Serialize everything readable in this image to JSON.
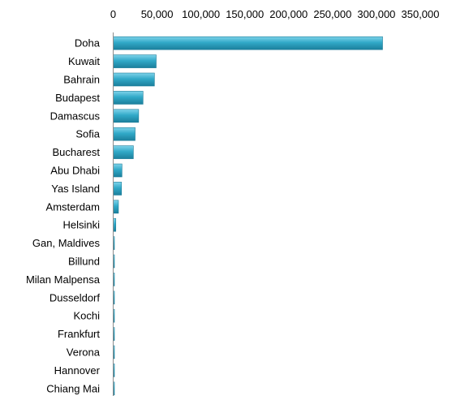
{
  "chart_data": {
    "type": "bar",
    "orientation": "horizontal",
    "categories": [
      "Doha",
      "Kuwait",
      "Bahrain",
      "Budapest",
      "Damascus",
      "Sofia",
      "Bucharest",
      "Abu Dhabi",
      "Yas Island",
      "Amsterdam",
      "Helsinki",
      "Gan, Maldives",
      "Billund",
      "Milan Malpensa",
      "Dusseldorf",
      "Kochi",
      "Frankfurt",
      "Verona",
      "Hannover",
      "Chiang Mai"
    ],
    "values": [
      307000,
      49000,
      47000,
      34000,
      29000,
      25000,
      23000,
      10000,
      9500,
      6000,
      3000,
      1000,
      800,
      700,
      700,
      600,
      600,
      600,
      500,
      500
    ],
    "x_ticks": [
      "0",
      "50,000",
      "100,000",
      "150,000",
      "200,000",
      "250,000",
      "300,000",
      "350,000"
    ],
    "xlim": [
      0,
      350000
    ],
    "grid": false,
    "legend": "none",
    "bar_color": "#31a9c8",
    "title": "",
    "xlabel": "",
    "ylabel": ""
  }
}
